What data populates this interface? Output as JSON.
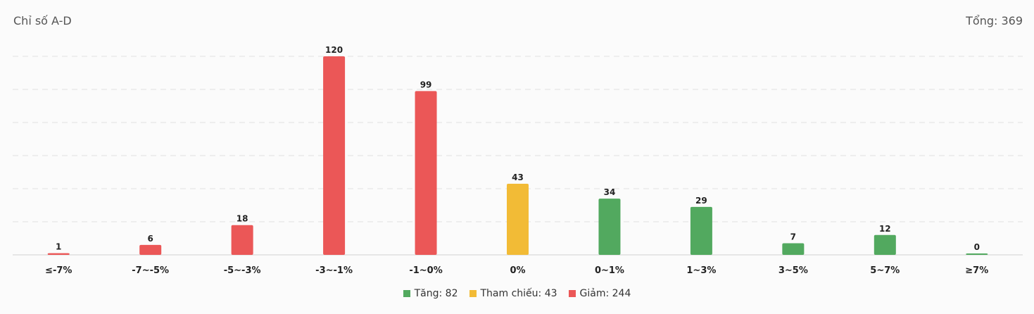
{
  "header": {
    "title": "Chỉ số A-D",
    "total": "Tổng: 369"
  },
  "colors": {
    "up": "#52a95f",
    "ref": "#f2bb36",
    "down": "#eb5757"
  },
  "chart_data": {
    "type": "bar",
    "title": "Chỉ số A-D",
    "categories": [
      "≤-7%",
      "-7~-5%",
      "-5~-3%",
      "-3~-1%",
      "-1~0%",
      "0%",
      "0~1%",
      "1~3%",
      "3~5%",
      "5~7%",
      "≥7%"
    ],
    "values": [
      1,
      6,
      18,
      120,
      99,
      43,
      34,
      29,
      7,
      12,
      0
    ],
    "bar_groups": [
      "down",
      "down",
      "down",
      "down",
      "down",
      "ref",
      "up",
      "up",
      "up",
      "up",
      "up"
    ],
    "ylim": [
      0,
      120
    ],
    "grid": true,
    "legend_position": "bottom",
    "legend": [
      {
        "key": "up",
        "text": "Tăng: 82"
      },
      {
        "key": "ref",
        "text": "Tham chiếu: 43"
      },
      {
        "key": "down",
        "text": "Giảm: 244"
      }
    ]
  }
}
